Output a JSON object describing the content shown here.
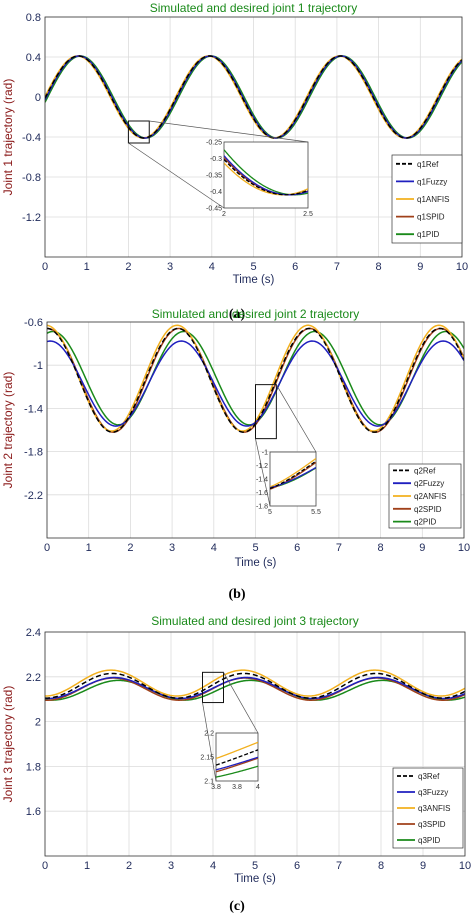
{
  "chart_data": [
    {
      "type": "line",
      "panel_label": "(a)",
      "title": "Simulated and desired joint 1 trajectory",
      "xlabel": "Time (s)",
      "ylabel": "Joint 1 trajectory (rad)",
      "xlim": [
        0,
        10
      ],
      "ylim": [
        -1.6,
        0.8
      ],
      "xticks": [
        "0",
        "1",
        "2",
        "3",
        "4",
        "5",
        "6",
        "7",
        "8",
        "9",
        "10"
      ],
      "yticks": [
        "0.8",
        "0.4",
        "0",
        "-0.4",
        "-0.8",
        "-1.2"
      ],
      "grid": true,
      "legend_position": "right",
      "signal": {
        "center": 0,
        "amplitude": 0.41,
        "period": 3.14,
        "peak_time": 0.8
      },
      "series": [
        {
          "name": "q1Ref",
          "color": "#000000",
          "style": "dashed",
          "offset": 0,
          "amp_scale": 1.0,
          "shift": 0
        },
        {
          "name": "q1Fuzzy",
          "color": "#1f1fbf",
          "style": "solid",
          "offset": 0,
          "amp_scale": 1.0,
          "shift": 0.02
        },
        {
          "name": "q1ANFIS",
          "color": "#f2b01e",
          "style": "solid",
          "offset": 0,
          "amp_scale": 1.0,
          "shift": -0.02
        },
        {
          "name": "q1SPID",
          "color": "#a0401a",
          "style": "solid",
          "offset": 0,
          "amp_scale": 1.0,
          "shift": 0.01
        },
        {
          "name": "q1PID",
          "color": "#1a8a1a",
          "style": "solid",
          "offset": 0,
          "amp_scale": 1.0,
          "shift": 0.05
        }
      ],
      "inset": {
        "xlim": [
          2,
          2.5
        ],
        "ylim": [
          -0.45,
          -0.25
        ],
        "xticks": [
          "2",
          "2.5"
        ],
        "yticks": [
          "-0.25",
          "-0.3",
          "-0.35",
          "-0.4",
          "-0.45"
        ]
      }
    },
    {
      "type": "line",
      "panel_label": "(b)",
      "title": "Simulated and desired joint 2 trajectory",
      "xlabel": "Time (s)",
      "ylabel": "Joint 2 trajectory (rad)",
      "xlim": [
        0,
        10
      ],
      "ylim": [
        -2.6,
        -0.6
      ],
      "xticks": [
        "0",
        "1",
        "2",
        "3",
        "4",
        "5",
        "6",
        "7",
        "8",
        "9",
        "10"
      ],
      "yticks": [
        "-0.6",
        "-1",
        "-1.4",
        "-1.8",
        "-2.2"
      ],
      "grid": true,
      "legend_position": "right",
      "signal": {
        "center": -1.14,
        "amplitude": 0.48,
        "period": 3.14,
        "peak_time": 0.0
      },
      "series": [
        {
          "name": "q2Ref",
          "color": "#000000",
          "style": "dashed",
          "offset": 0,
          "amp_scale": 1.0,
          "shift": 0
        },
        {
          "name": "q2Fuzzy",
          "color": "#1f1fbf",
          "style": "solid",
          "offset": -0.03,
          "amp_scale": 0.82,
          "shift": 0.08
        },
        {
          "name": "q2ANFIS",
          "color": "#f2b01e",
          "style": "solid",
          "offset": 0.02,
          "amp_scale": 1.02,
          "shift": -0.02
        },
        {
          "name": "q2SPID",
          "color": "#a0401a",
          "style": "solid",
          "offset": 0,
          "amp_scale": 1.0,
          "shift": 0.02
        },
        {
          "name": "q2PID",
          "color": "#1a8a1a",
          "style": "solid",
          "offset": 0.02,
          "amp_scale": 0.9,
          "shift": 0.14
        }
      ],
      "inset": {
        "xlim": [
          5,
          5.5
        ],
        "ylim": [
          -1.8,
          -1
        ],
        "xticks": [
          "5",
          "5.5"
        ],
        "yticks": [
          "-1",
          "-1.2",
          "-1.4",
          "-1.6",
          "-1.8"
        ]
      }
    },
    {
      "type": "line",
      "panel_label": "(c)",
      "title": "Simulated and desired joint 3 trajectory",
      "xlabel": "Time (s)",
      "ylabel": "Joint 3 trajectory (rad)",
      "xlim": [
        0,
        10
      ],
      "ylim": [
        1.4,
        2.4
      ],
      "xticks": [
        "0",
        "1",
        "2",
        "3",
        "4",
        "5",
        "6",
        "7",
        "8",
        "9",
        "10"
      ],
      "yticks": [
        "2.4",
        "2.2",
        "2",
        "1.8",
        "1.6"
      ],
      "grid": true,
      "legend_position": "right",
      "signal": {
        "center": 2.16,
        "amplitude": 0.055,
        "period": 3.14,
        "peak_time": 1.6
      },
      "series": [
        {
          "name": "q3Ref",
          "color": "#000000",
          "style": "dashed",
          "offset": 0,
          "amp_scale": 1.0,
          "shift": 0
        },
        {
          "name": "q3Fuzzy",
          "color": "#1f1fbf",
          "style": "solid",
          "offset": -0.01,
          "amp_scale": 0.85,
          "shift": 0.05
        },
        {
          "name": "q3ANFIS",
          "color": "#f2b01e",
          "style": "solid",
          "offset": 0.012,
          "amp_scale": 1.05,
          "shift": -0.03
        },
        {
          "name": "q3SPID",
          "color": "#a0401a",
          "style": "solid",
          "offset": -0.015,
          "amp_scale": 0.9,
          "shift": 0.02
        },
        {
          "name": "q3PID",
          "color": "#1a8a1a",
          "style": "solid",
          "offset": -0.02,
          "amp_scale": 0.8,
          "shift": 0.15
        }
      ],
      "inset": {
        "xlim": [
          3.7,
          4
        ],
        "ylim": [
          2.1,
          2.2
        ],
        "xticks": [
          "3.8",
          "3.8",
          "4"
        ],
        "yticks": [
          "2.2",
          "2.15",
          "2.1"
        ]
      }
    }
  ]
}
